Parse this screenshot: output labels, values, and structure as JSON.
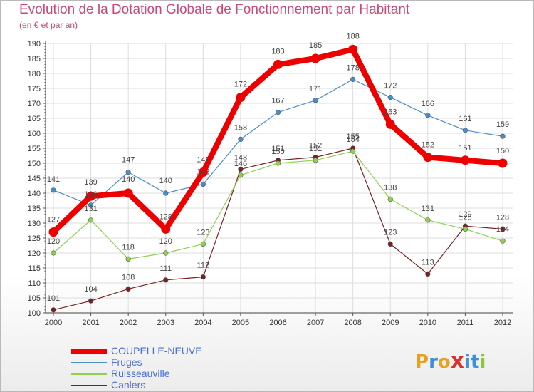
{
  "chart_data": {
    "type": "line",
    "title": "Evolution de la Dotation Globale de Fonctionnement par Habitant",
    "subtitle": "(en € et par an)",
    "xlabel": "",
    "ylabel": "",
    "x": [
      "2000",
      "2001",
      "2002",
      "2003",
      "2004",
      "2005",
      "2006",
      "2007",
      "2008",
      "2009",
      "2010",
      "2011",
      "2012"
    ],
    "ylim": [
      100,
      190
    ],
    "yticks": [
      100,
      105,
      110,
      115,
      120,
      125,
      130,
      135,
      140,
      145,
      150,
      155,
      160,
      165,
      170,
      175,
      180,
      185,
      190
    ],
    "grid": true,
    "series": [
      {
        "name": "COUPELLE-NEUVE",
        "color": "#ee0000",
        "width": "thick",
        "values": [
          127,
          139,
          140,
          128,
          147,
          172,
          183,
          185,
          188,
          163,
          152,
          151,
          150
        ]
      },
      {
        "name": "Fruges",
        "color": "#4a8ec9",
        "width": "thin",
        "values": [
          141,
          136,
          147,
          140,
          143,
          158,
          167,
          171,
          178,
          172,
          166,
          161,
          159
        ]
      },
      {
        "name": "Ruisseauville",
        "color": "#8fd14f",
        "width": "thin",
        "values": [
          120,
          131,
          118,
          120,
          123,
          146,
          150,
          151,
          154,
          138,
          131,
          128,
          124
        ]
      },
      {
        "name": "Canlers",
        "color": "#7a1f24",
        "width": "thin",
        "values": [
          101,
          104,
          108,
          111,
          112,
          148,
          151,
          152,
          155,
          123,
          113,
          129,
          128
        ]
      }
    ]
  },
  "legend": [
    {
      "label": "COUPELLE-NEUVE",
      "color": "#ee0000"
    },
    {
      "label": "Fruges",
      "color": "#4a8ec9"
    },
    {
      "label": "Ruisseauville",
      "color": "#8fd14f"
    },
    {
      "label": "Canlers",
      "color": "#7a1f24"
    }
  ],
  "logo": {
    "text": "Proxiti",
    "colors": [
      "#e8a020",
      "#3c8fd8",
      "#e8a020",
      "#d83030",
      "#3c8fd8",
      "#3c8fd8",
      "#8cc63f"
    ]
  }
}
